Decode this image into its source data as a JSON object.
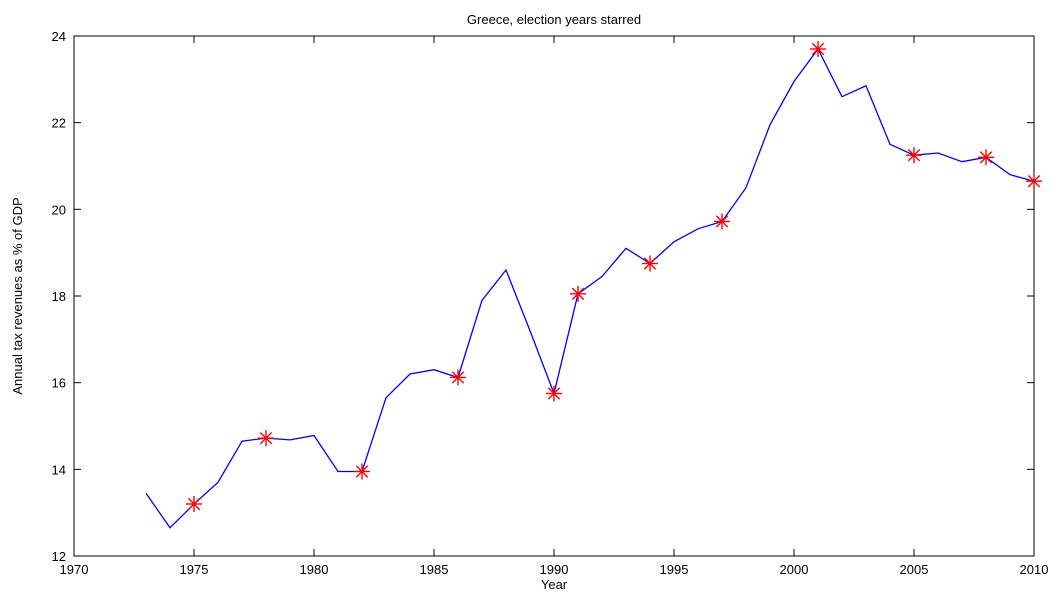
{
  "chart_data": {
    "type": "line",
    "title": "Greece, election years starred",
    "xlabel": "Year",
    "ylabel": "Annual tax revenues as % of GDP",
    "xlim": [
      1970,
      2010
    ],
    "ylim": [
      12,
      24
    ],
    "grid": false,
    "x_ticks": [
      1970,
      1975,
      1980,
      1985,
      1990,
      1995,
      2000,
      2005,
      2010
    ],
    "y_ticks": [
      12,
      14,
      16,
      18,
      20,
      22,
      24
    ],
    "line_color": "#0000ff",
    "marker_color": "#ff0000",
    "series": [
      {
        "x": [
          1973,
          1974,
          1975,
          1976,
          1977,
          1978,
          1979,
          1980,
          1981,
          1982,
          1983,
          1984,
          1985,
          1986,
          1987,
          1988,
          1989,
          1990,
          1991,
          1992,
          1993,
          1994,
          1995,
          1996,
          1997,
          1998,
          1999,
          2000,
          2001,
          2002,
          2003,
          2004,
          2005,
          2006,
          2007,
          2008,
          2009,
          2010
        ],
        "values": [
          13.45,
          12.65,
          13.2,
          13.7,
          14.65,
          14.72,
          14.68,
          14.78,
          13.95,
          13.95,
          15.65,
          16.2,
          16.3,
          16.12,
          17.9,
          18.6,
          17.2,
          15.75,
          18.05,
          18.45,
          19.1,
          18.75,
          19.25,
          19.55,
          19.72,
          20.5,
          21.95,
          22.95,
          23.7,
          22.6,
          22.85,
          21.5,
          21.25,
          21.3,
          21.1,
          21.2,
          20.8,
          20.65
        ]
      }
    ],
    "starred_years": [
      1975,
      1978,
      1982,
      1986,
      1990,
      1991,
      1994,
      1997,
      2001,
      2005,
      2008,
      2010
    ]
  }
}
